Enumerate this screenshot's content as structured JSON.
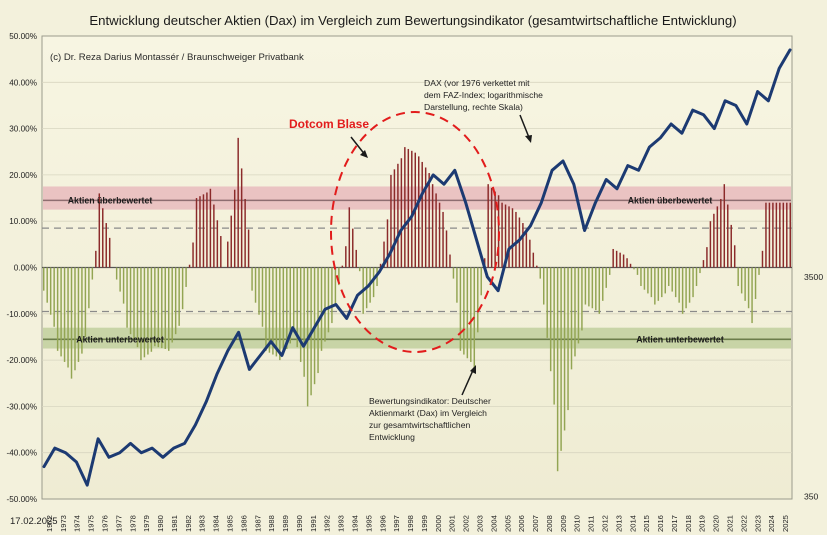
{
  "chart_data": {
    "type": "bar",
    "title": "Entwicklung deutscher Aktien (Dax) im Vergleich zum Bewertungsindikator (gesamtwirtschaftliche Entwicklung)",
    "subtitle": "(c) Dr. Reza Darius Montassér / Braunschweiger Privatbank",
    "date_label": "17.02.2025",
    "left_axis": {
      "ylim": [
        -50,
        50
      ],
      "ticks": [
        "50.00%",
        "40.00%",
        "30.00%",
        "20.00%",
        "10.00%",
        "0.00%",
        "-10.00%",
        "-20.00%",
        "-30.00%",
        "-40.00%",
        "-50.00%"
      ]
    },
    "right_axis": {
      "scale": "log",
      "ticks": [
        "3500",
        "350"
      ]
    },
    "x_years": [
      "1972",
      "1973",
      "1974",
      "1975",
      "1976",
      "1977",
      "1978",
      "1979",
      "1980",
      "1981",
      "1982",
      "1983",
      "1984",
      "1985",
      "1986",
      "1987",
      "1988",
      "1989",
      "1990",
      "1991",
      "1992",
      "1993",
      "1994",
      "1995",
      "1996",
      "1997",
      "1998",
      "1999",
      "2000",
      "2001",
      "2002",
      "2003",
      "2004",
      "2005",
      "2006",
      "2007",
      "2008",
      "2009",
      "2010",
      "2011",
      "2012",
      "2013",
      "2014",
      "2015",
      "2016",
      "2017",
      "2018",
      "2019",
      "2020",
      "2021",
      "2022",
      "2023",
      "2024",
      "2025"
    ],
    "bands": [
      {
        "label": "Aktien überbewertet",
        "from": 12.5,
        "to": 17.5,
        "color": "#e7b3b8",
        "line": 14.5
      },
      {
        "label": "Aktien unterbewertet",
        "from": -17.5,
        "to": -13.0,
        "color": "#b9cb95",
        "line": -15.5
      }
    ],
    "dashed_lines": [
      8.5,
      -9.5
    ],
    "annotations": {
      "dotcom": "Dotcom Blase",
      "dax_note": [
        "DAX (vor 1976 verkettet mit",
        "dem FAZ-Index; logarithmische",
        "Darstellung, rechte Skala)"
      ],
      "indicator_note": [
        "Bewertungsindikator: Deutscher",
        "Aktienmarkt (Dax) im Vergleich",
        "zur gesamtwirtschaftlichen",
        "Entwicklung"
      ]
    },
    "indicator_series": {
      "name": "Bewertungsindikator",
      "yearly_values": [
        -5,
        -18,
        -24,
        -15,
        16,
        0,
        -13,
        -20,
        -17,
        -18,
        -9,
        15,
        17,
        0,
        28,
        -5,
        -18,
        -20,
        -14,
        -30,
        -18,
        -8,
        13,
        -10,
        -4,
        20,
        26,
        24,
        18,
        8,
        -18,
        -22,
        18,
        14,
        12,
        6,
        -8,
        -44,
        -22,
        -8,
        -10,
        4,
        2,
        -4,
        -8,
        -4,
        -10,
        -4,
        10,
        18,
        -4,
        -12,
        14,
        14
      ],
      "positive_color": "#8b2a2a",
      "negative_color": "#93a553"
    },
    "dax_series": {
      "name": "DAX",
      "color": "#1c3a72",
      "values": [
        -43,
        -39,
        -40,
        -42,
        -47,
        -37,
        -41,
        -40,
        -38,
        -40,
        -39,
        -41,
        -39,
        -38,
        -34,
        -29,
        -23,
        -18,
        -14,
        -22,
        -19,
        -16,
        -19,
        -13,
        -17,
        -13,
        -9,
        -8,
        -11,
        -6,
        -4,
        -1,
        3,
        8,
        11,
        16,
        20,
        18,
        21,
        14,
        6,
        -2,
        -5,
        4,
        6,
        9,
        14,
        21,
        23,
        18,
        8,
        14,
        19,
        17,
        22,
        21,
        26,
        28,
        31,
        29,
        34,
        33,
        30,
        36,
        35,
        31,
        38,
        36,
        43,
        47
      ]
    }
  }
}
